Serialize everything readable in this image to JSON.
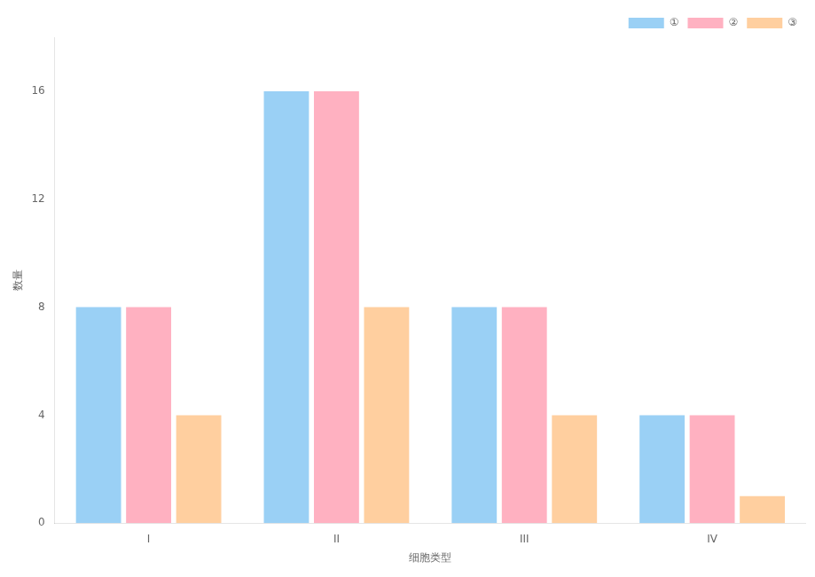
{
  "chart_data": {
    "type": "bar",
    "categories": [
      "I",
      "II",
      "III",
      "IV"
    ],
    "series": [
      {
        "name": "①",
        "values": [
          8,
          16,
          8,
          4
        ]
      },
      {
        "name": "②",
        "values": [
          8,
          16,
          8,
          4
        ]
      },
      {
        "name": "③",
        "values": [
          4,
          8,
          4,
          1
        ]
      }
    ],
    "xlabel": "细胞类型",
    "ylabel": "数量",
    "ylim": [
      0,
      18
    ],
    "yticks": [
      0,
      4,
      8,
      12,
      16
    ],
    "grid": false,
    "legend": "upper right"
  }
}
